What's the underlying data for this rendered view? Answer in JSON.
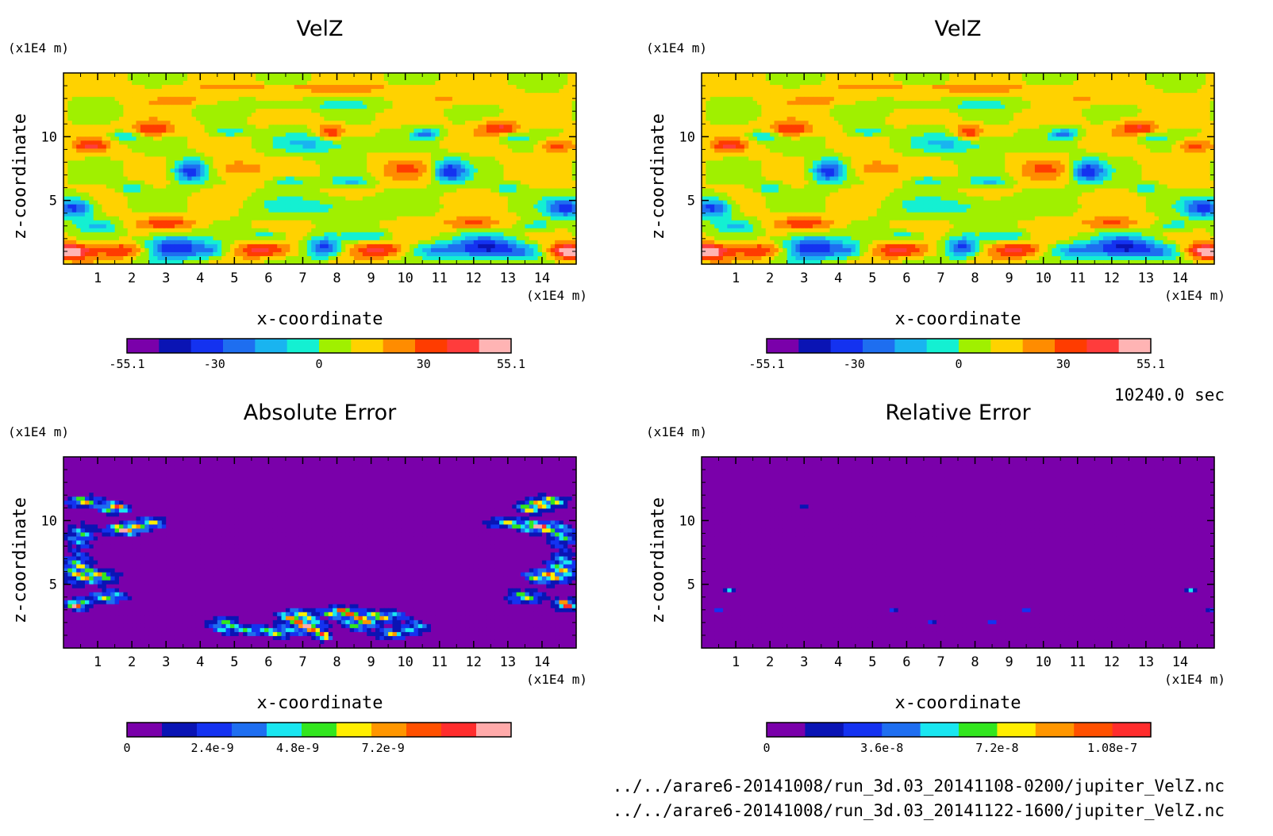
{
  "time_label": "10240.0 sec",
  "file_paths": [
    "../../arare6-20141008/run_3d.03_20141108-0200/jupiter_VelZ.nc",
    "../../arare6-20141008/run_3d.03_20141122-1600/jupiter_VelZ.nc"
  ],
  "chart_data": [
    {
      "type": "heatmap",
      "title": "VelZ",
      "xlabel": "x-coordinate",
      "ylabel": "z-coordinate",
      "x_unit": "(x1E4 m)",
      "y_unit": "(x1E4 m)",
      "xlim": [
        0,
        15
      ],
      "ylim": [
        0,
        15
      ],
      "x_ticks": [
        1,
        2,
        3,
        4,
        5,
        6,
        7,
        8,
        9,
        10,
        11,
        12,
        13,
        14
      ],
      "y_ticks": [
        5,
        10
      ],
      "colorbar": {
        "min": -55.1,
        "max": 55.1,
        "tick_values": [
          -55.1,
          -30,
          0,
          30,
          55.1
        ],
        "tick_labels": [
          "-55.1",
          "-30",
          "0",
          "30",
          "55.1"
        ],
        "colors": [
          "#7a00aa",
          "#0a14b4",
          "#1432f0",
          "#1e6ef0",
          "#19b4f0",
          "#14f0d2",
          "#a0f000",
          "#ffd200",
          "#ff8c00",
          "#ff3c00",
          "#ff3c3c",
          "#ffb4b4"
        ]
      },
      "field": "velz"
    },
    {
      "type": "heatmap",
      "title": "VelZ",
      "xlabel": "x-coordinate",
      "ylabel": "z-coordinate",
      "x_unit": "(x1E4 m)",
      "y_unit": "(x1E4 m)",
      "xlim": [
        0,
        15
      ],
      "ylim": [
        0,
        15
      ],
      "x_ticks": [
        1,
        2,
        3,
        4,
        5,
        6,
        7,
        8,
        9,
        10,
        11,
        12,
        13,
        14
      ],
      "y_ticks": [
        5,
        10
      ],
      "colorbar": {
        "min": -55.1,
        "max": 55.1,
        "tick_values": [
          -55.1,
          -30,
          0,
          30,
          55.1
        ],
        "tick_labels": [
          "-55.1",
          "-30",
          "0",
          "30",
          "55.1"
        ],
        "colors": [
          "#7a00aa",
          "#0a14b4",
          "#1432f0",
          "#1e6ef0",
          "#19b4f0",
          "#14f0d2",
          "#a0f000",
          "#ffd200",
          "#ff8c00",
          "#ff3c00",
          "#ff3c3c",
          "#ffb4b4"
        ]
      },
      "field": "velz"
    },
    {
      "type": "heatmap",
      "title": "Absolute Error",
      "xlabel": "x-coordinate",
      "ylabel": "z-coordinate",
      "x_unit": "(x1E4 m)",
      "y_unit": "(x1E4 m)",
      "xlim": [
        0,
        15
      ],
      "ylim": [
        0,
        15
      ],
      "x_ticks": [
        1,
        2,
        3,
        4,
        5,
        6,
        7,
        8,
        9,
        10,
        11,
        12,
        13,
        14
      ],
      "y_ticks": [
        5,
        10
      ],
      "colorbar": {
        "min": 0,
        "max": 1.08e-08,
        "tick_values": [
          0,
          2.4e-09,
          4.8e-09,
          7.2e-09
        ],
        "tick_labels": [
          "0",
          "2.4e-9",
          "4.8e-9",
          "7.2e-9"
        ],
        "colors": [
          "#7a00aa",
          "#0a14b4",
          "#1432f0",
          "#1e6ef0",
          "#19e6f0",
          "#32e61e",
          "#ffee00",
          "#ff9600",
          "#ff5000",
          "#ff2d2d",
          "#ffaaaa"
        ]
      },
      "field": "abserr"
    },
    {
      "type": "heatmap",
      "title": "Relative Error",
      "xlabel": "x-coordinate",
      "ylabel": "z-coordinate",
      "x_unit": "(x1E4 m)",
      "y_unit": "(x1E4 m)",
      "xlim": [
        0,
        15
      ],
      "ylim": [
        0,
        15
      ],
      "x_ticks": [
        1,
        2,
        3,
        4,
        5,
        6,
        7,
        8,
        9,
        10,
        11,
        12,
        13,
        14
      ],
      "y_ticks": [
        5,
        10
      ],
      "colorbar": {
        "min": 0,
        "max": 1.2e-07,
        "tick_values": [
          0,
          3.6e-08,
          7.2e-08,
          1.08e-07
        ],
        "tick_labels": [
          "0",
          "3.6e-8",
          "7.2e-8",
          "1.08e-7"
        ],
        "colors": [
          "#7a00aa",
          "#0a14b4",
          "#1432f0",
          "#1e6ef0",
          "#19e6f0",
          "#32e61e",
          "#ffee00",
          "#ff9600",
          "#ff5000",
          "#ff2d2d"
        ]
      },
      "field": "relerr"
    }
  ]
}
